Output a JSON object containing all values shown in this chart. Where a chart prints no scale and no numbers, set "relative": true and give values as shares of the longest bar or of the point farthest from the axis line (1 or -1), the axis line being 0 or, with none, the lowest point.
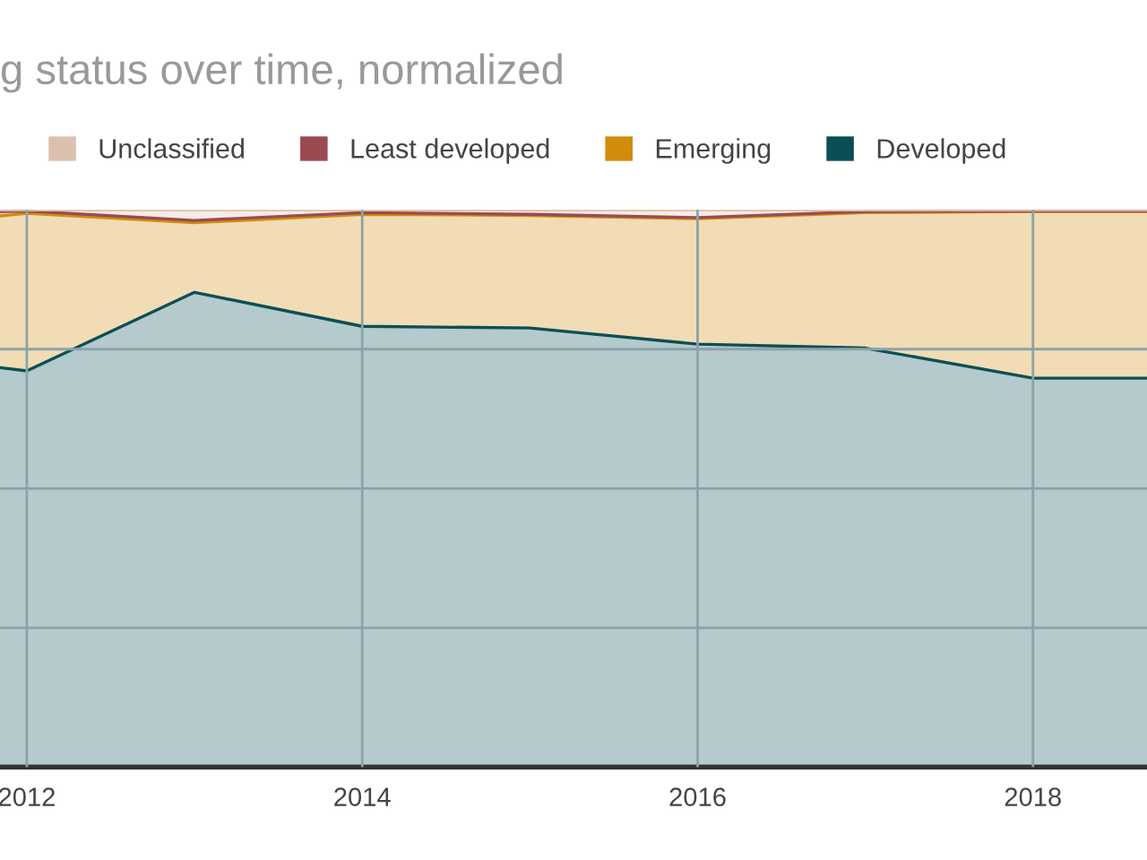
{
  "chart_data": {
    "type": "area",
    "title": "g status over time, normalized",
    "stacked": true,
    "relative": true,
    "x": [
      2011.84,
      2012,
      2013,
      2014,
      2015,
      2016,
      2017,
      2018,
      2018.68
    ],
    "xlim": [
      2011.84,
      2018.68
    ],
    "xticks": [
      2012,
      2014,
      2016,
      2018
    ],
    "grid": true,
    "legend": "top",
    "series": [
      {
        "name": "Developed",
        "color": "#0b4f55",
        "values": [
          0.717,
          0.711,
          0.852,
          0.791,
          0.788,
          0.759,
          0.752,
          0.698,
          0.698
        ]
      },
      {
        "name": "Emerging",
        "color": "#d08c0a",
        "values": [
          0.272,
          0.283,
          0.125,
          0.201,
          0.202,
          0.225,
          0.243,
          0.299,
          0.299
        ]
      },
      {
        "name": "Least developed",
        "color": "#9c4a52",
        "values": [
          0.008,
          0.004,
          0.004,
          0.003,
          0.002,
          0.002,
          0.002,
          0.001,
          0.001
        ]
      },
      {
        "name": "Unclassified",
        "color": "#dcc0ae",
        "values": [
          0.003,
          0.002,
          0.019,
          0.005,
          0.008,
          0.014,
          0.003,
          0.002,
          0.002
        ]
      }
    ]
  }
}
